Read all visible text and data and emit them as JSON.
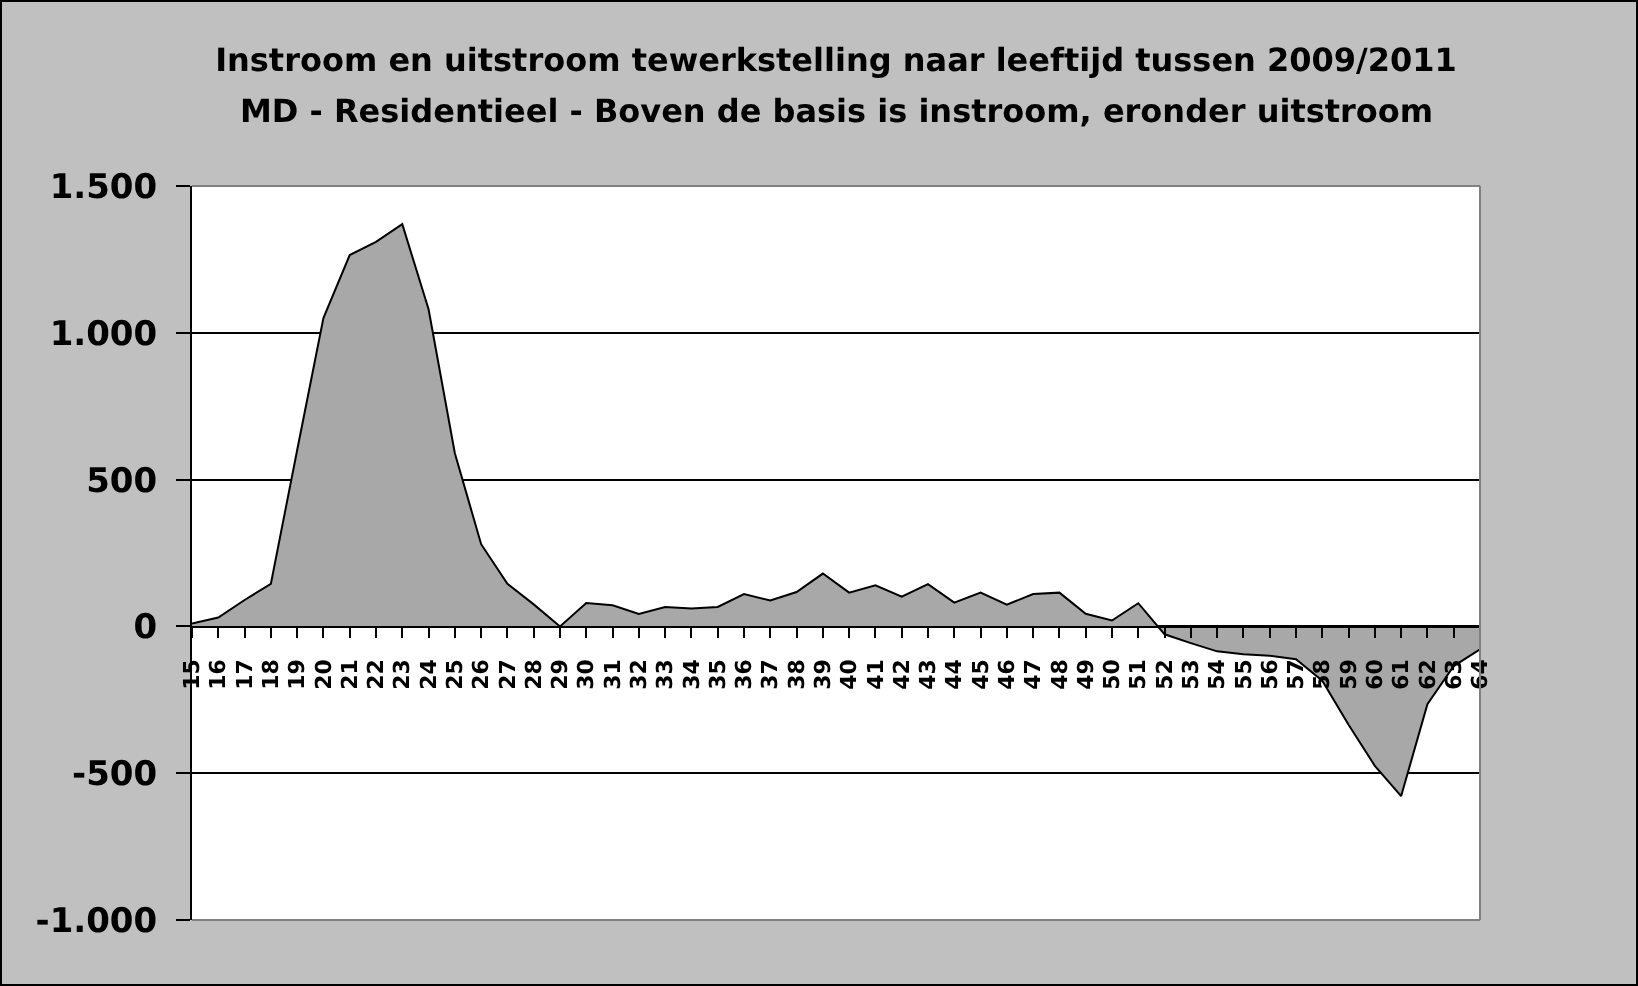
{
  "chart_data": {
    "type": "area",
    "title": "Instroom en uitstroom tewerkstelling naar leeftijd tussen 2009/2011",
    "subtitle": "MD - Residentieel - Boven de basis is instroom, eronder uitstroom",
    "categories": [
      "15",
      "16",
      "17",
      "18",
      "19",
      "20",
      "21",
      "22",
      "23",
      "24",
      "25",
      "26",
      "27",
      "28",
      "29",
      "30",
      "31",
      "32",
      "33",
      "34",
      "35",
      "36",
      "37",
      "38",
      "39",
      "40",
      "41",
      "42",
      "43",
      "44",
      "45",
      "46",
      "47",
      "48",
      "49",
      "50",
      "51",
      "52",
      "53",
      "54",
      "55",
      "56",
      "57",
      "58",
      "59",
      "60",
      "61",
      "62",
      "63",
      "64"
    ],
    "values": [
      10,
      30,
      90,
      145,
      600,
      1050,
      1265,
      1310,
      1370,
      1080,
      590,
      280,
      145,
      75,
      0,
      80,
      72,
      42,
      66,
      61,
      66,
      110,
      88,
      117,
      180,
      115,
      140,
      101,
      144,
      81,
      115,
      74,
      110,
      115,
      43,
      20,
      79,
      -27,
      -57,
      -85,
      -95,
      -100,
      -112,
      -185,
      -335,
      -475,
      -578,
      -265,
      -135,
      -78
    ],
    "color": "#a8a8a8",
    "ylim": [
      -1000,
      1500
    ],
    "yticks": [
      {
        "value": -1000,
        "label": "-1.000"
      },
      -500,
      0,
      500,
      {
        "value": 1000,
        "label": "1.000"
      },
      {
        "value": 1500,
        "label": "1.500"
      }
    ],
    "grid": "y"
  }
}
